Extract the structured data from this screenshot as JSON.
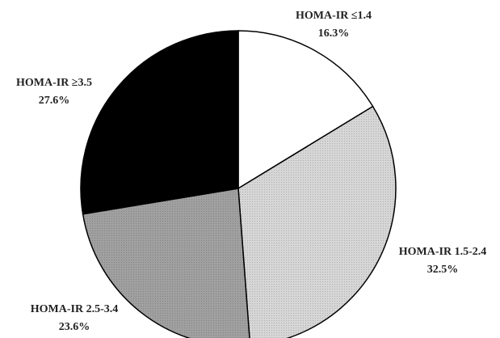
{
  "chart_data": {
    "type": "pie",
    "categories": [
      "HOMA-IR ≤1.4",
      "HOMA-IR 1.5-2.4",
      "HOMA-IR 2.5-3.4",
      "HOMA-IR ≥3.5"
    ],
    "values": [
      16.3,
      32.5,
      23.6,
      27.6
    ],
    "value_labels": [
      "16.3%",
      "32.5%",
      "23.6%",
      "27.6%"
    ],
    "colors": [
      "#ffffff",
      "#d6d6d6",
      "#a0a0a0",
      "#000000"
    ]
  }
}
